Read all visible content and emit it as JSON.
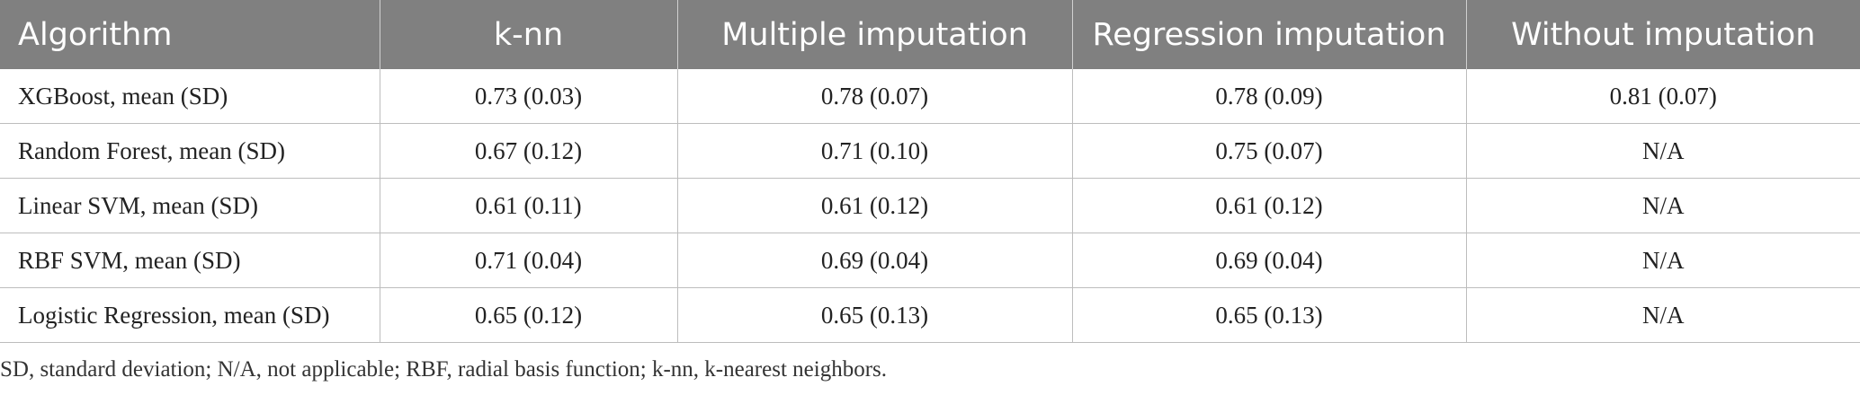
{
  "table": {
    "columns": [
      "Algorithm",
      "k-nn",
      "Multiple imputation",
      "Regression imputation",
      "Without imputation"
    ],
    "rows": [
      [
        "XGBoost, mean (SD)",
        "0.73 (0.03)",
        "0.78 (0.07)",
        "0.78 (0.09)",
        "0.81 (0.07)"
      ],
      [
        "Random Forest, mean (SD)",
        "0.67 (0.12)",
        "0.71 (0.10)",
        "0.75 (0.07)",
        "N/A"
      ],
      [
        "Linear SVM, mean (SD)",
        "0.61 (0.11)",
        "0.61 (0.12)",
        "0.61 (0.12)",
        "N/A"
      ],
      [
        "RBF SVM, mean (SD)",
        "0.71 (0.04)",
        "0.69 (0.04)",
        "0.69 (0.04)",
        "N/A"
      ],
      [
        "Logistic Regression, mean (SD)",
        "0.65 (0.12)",
        "0.65 (0.13)",
        "0.65 (0.13)",
        "N/A"
      ]
    ]
  },
  "footnote": "SD, standard deviation; N/A, not applicable; RBF, radial basis function; k-nn, k-nearest neighbors.",
  "colors": {
    "header_bg": "#808080",
    "header_text": "#ffffff",
    "rule": "#bdbdbd",
    "body_text": "#222222"
  }
}
